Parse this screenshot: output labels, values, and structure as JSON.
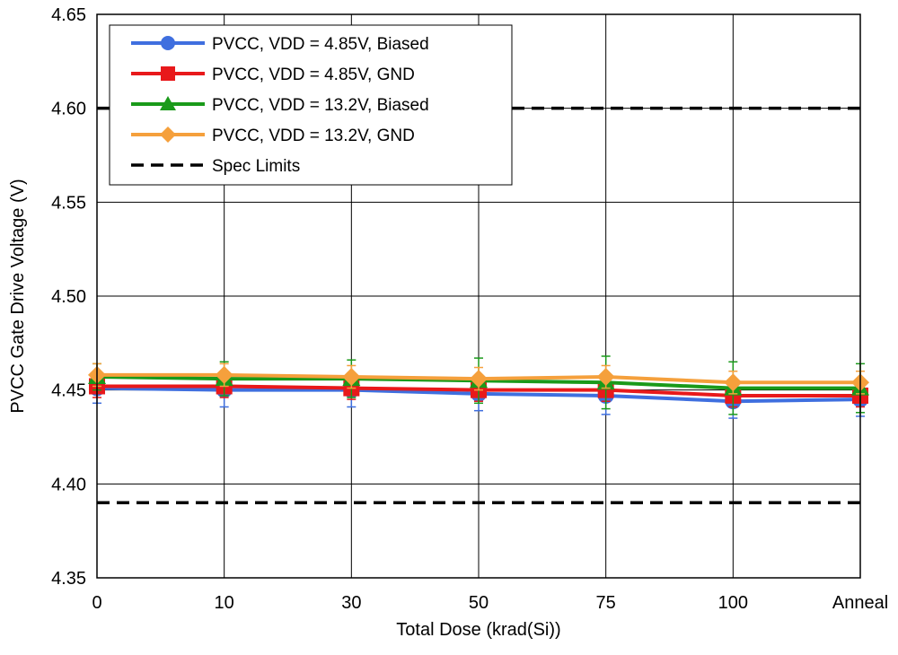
{
  "chart_data": {
    "type": "line",
    "xlabel": "Total Dose (krad(Si))",
    "ylabel": "PVCC Gate Drive Voltage (V)",
    "categories": [
      "0",
      "10",
      "30",
      "50",
      "75",
      "100",
      "Anneal"
    ],
    "ylim": [
      4.35,
      4.65
    ],
    "yticks": [
      "4.35",
      "4.40",
      "4.45",
      "4.50",
      "4.55",
      "4.60",
      "4.65"
    ],
    "grid": true,
    "legend_position": "top-left",
    "series": [
      {
        "name": "PVCC, VDD = 4.85V, Biased",
        "color": "#3f6fdf",
        "marker": "circle",
        "values": [
          4.451,
          4.45,
          4.45,
          4.448,
          4.447,
          4.444,
          4.445
        ],
        "error": [
          0.008,
          0.009,
          0.009,
          0.009,
          0.01,
          0.009,
          0.009
        ]
      },
      {
        "name": "PVCC, VDD = 4.85V, GND",
        "color": "#e8191b",
        "marker": "square",
        "values": [
          4.452,
          4.452,
          4.451,
          4.45,
          4.45,
          4.447,
          4.447
        ],
        "error": [
          0.006,
          0.006,
          0.006,
          0.006,
          0.006,
          0.006,
          0.006
        ]
      },
      {
        "name": "PVCC, VDD = 13.2V, Biased",
        "color": "#1a9a1a",
        "marker": "triangle",
        "values": [
          4.457,
          4.456,
          4.456,
          4.455,
          4.454,
          4.451,
          4.451
        ],
        "error": [
          0.007,
          0.009,
          0.01,
          0.012,
          0.014,
          0.014,
          0.013
        ]
      },
      {
        "name": "PVCC, VDD = 13.2V, GND",
        "color": "#f5a03c",
        "marker": "diamond",
        "values": [
          4.458,
          4.458,
          4.457,
          4.456,
          4.457,
          4.454,
          4.454
        ],
        "error": [
          0.006,
          0.006,
          0.006,
          0.006,
          0.006,
          0.006,
          0.006
        ]
      }
    ],
    "spec_limits": {
      "name": "Spec Limits",
      "color": "#000000",
      "values": [
        4.6,
        4.39
      ]
    }
  }
}
